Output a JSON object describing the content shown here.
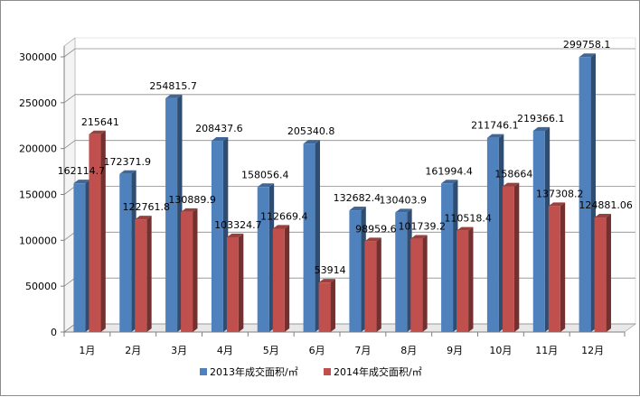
{
  "chart_data": {
    "type": "bar",
    "categories": [
      "1月",
      "2月",
      "3月",
      "4月",
      "5月",
      "6月",
      "7月",
      "8月",
      "9月",
      "10月",
      "11月",
      "12月"
    ],
    "series": [
      {
        "name": "2013年成交面积/㎡",
        "color": "#4F81BD",
        "values": [
          162114.7,
          172371.9,
          254815.7,
          208437.6,
          158056.4,
          205340.8,
          132682.4,
          130403.9,
          161994.4,
          211746.1,
          219366.1,
          299758.1
        ],
        "labels": [
          "162114.7",
          "172371.9",
          "254815.7",
          "208437.6",
          "158056.4",
          "205340.8",
          "132682.4",
          "130403.9",
          "161994.4",
          "211746.1",
          "219366.1",
          "299758.1"
        ]
      },
      {
        "name": "2014年成交面积/㎡",
        "color": "#C0504D",
        "values": [
          215641,
          122761.8,
          130889.9,
          103324.7,
          112669.4,
          53914,
          98959.6,
          101739.2,
          110518.4,
          158664,
          137308.2,
          124881.06
        ],
        "labels": [
          "215641",
          "122761.8",
          "130889.9",
          "103324.7",
          "112669.4",
          "53914",
          "98959.6",
          "101739.2",
          "110518.4",
          "158664",
          "137308.2",
          "124881.06"
        ]
      }
    ],
    "yticks": [
      "0",
      "50000",
      "100000",
      "150000",
      "200000",
      "250000",
      "300000"
    ],
    "ylim": [
      0,
      300000
    ],
    "grid": true,
    "legend": "bottom",
    "style": "3d-column"
  }
}
